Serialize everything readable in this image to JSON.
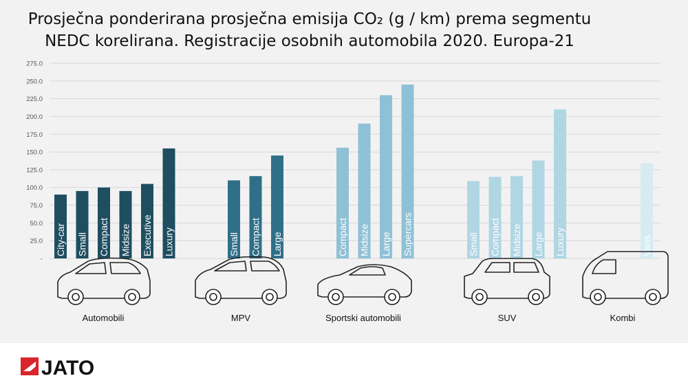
{
  "title_line1": "Prosječna ponderirana prosječna emisija CO₂ (g / km) prema segmentu",
  "title_line2": "NEDC korelirana. Registracije osobnih automobila 2020. Europa-21",
  "logo_text": "JATO",
  "colors": {
    "Automobili": "#1f4e61",
    "MPV": "#2f6f88",
    "Sportski automobili": "#8fc1d6",
    "SUV": "#b0d6e4",
    "Kombi": "#d6ebf2",
    "logo_red": "#d9262c"
  },
  "chart_data": {
    "type": "bar",
    "title": "Prosječna ponderirana prosječna emisija CO₂ (g / km) prema segmentu NEDC korelirana. Registracije osobnih automobila 2020. Europa-21",
    "ylim": [
      0,
      275
    ],
    "yticks": [
      "-",
      "25.0",
      "50.0",
      "75.0",
      "100.0",
      "125.0",
      "150.0",
      "175.0",
      "200.0",
      "225.0",
      "250.0",
      "275.0"
    ],
    "grid": true,
    "groups": [
      {
        "name": "Automobili",
        "icon": "hatchback-car-icon",
        "categories": [
          "City-car",
          "Small",
          "Compact",
          "Midsize",
          "Executive",
          "Luxury"
        ],
        "values": [
          90,
          95,
          100,
          95,
          105,
          155
        ]
      },
      {
        "name": "MPV",
        "icon": "mpv-car-icon",
        "categories": [
          "Small",
          "Compact",
          "Large"
        ],
        "values": [
          110,
          116,
          145
        ]
      },
      {
        "name": "Sportski automobili",
        "icon": "sports-car-icon",
        "categories": [
          "Compact",
          "Midsize",
          "Large",
          "Supercars"
        ],
        "values": [
          156,
          190,
          230,
          245
        ]
      },
      {
        "name": "SUV",
        "icon": "suv-car-icon",
        "categories": [
          "Small",
          "Compact",
          "Midsize",
          "Large",
          "Luxury"
        ],
        "values": [
          109,
          115,
          116,
          138,
          210
        ]
      },
      {
        "name": "Kombi",
        "icon": "van-icon",
        "categories": [
          "Vans"
        ],
        "values": [
          134
        ]
      }
    ]
  }
}
